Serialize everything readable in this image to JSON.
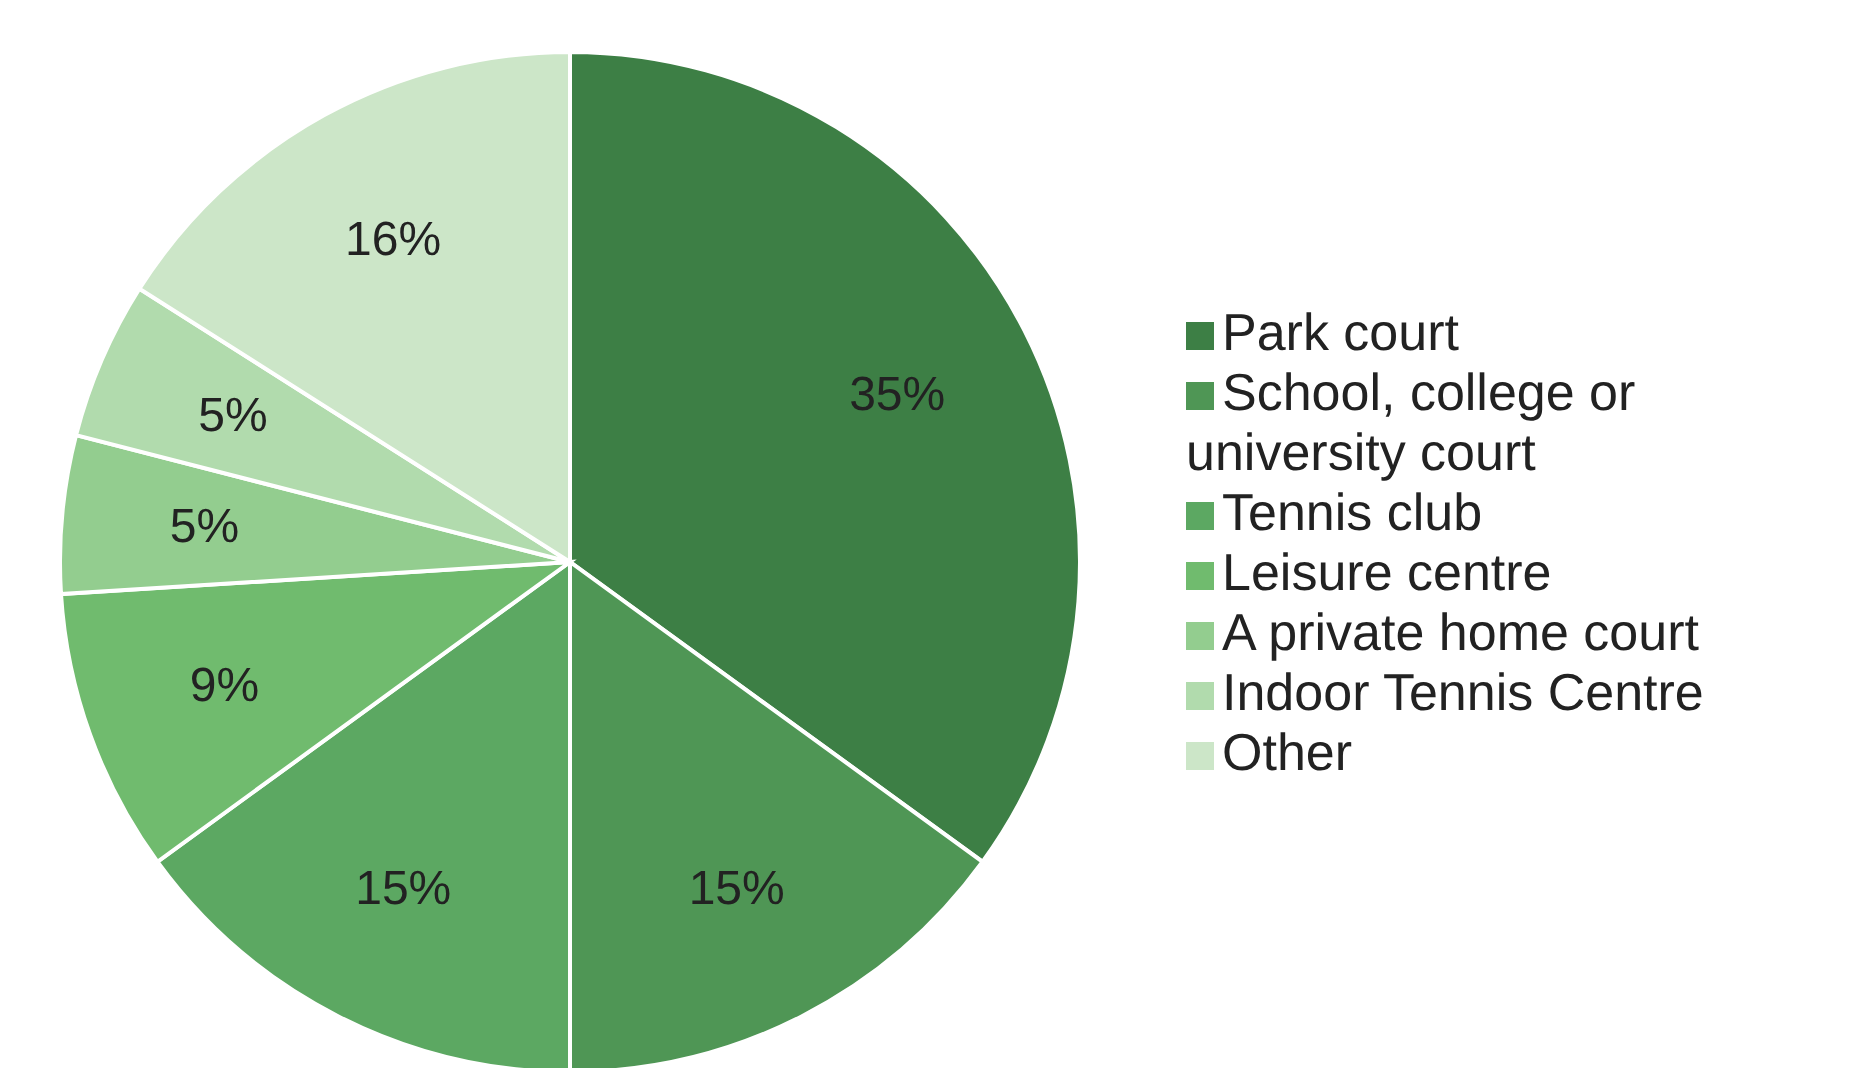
{
  "chart_data": {
    "type": "pie",
    "categories": [
      "Park court",
      "School, college or university court",
      "Tennis club",
      "Leisure centre",
      "A private home court",
      "Indoor Tennis Centre",
      "Other"
    ],
    "values": [
      35,
      15,
      15,
      9,
      5,
      5,
      16
    ],
    "value_labels": [
      "35%",
      "15%",
      "15%",
      "9%",
      "5%",
      "5%",
      "16%"
    ],
    "colors": [
      "#3d7f45",
      "#4f9655",
      "#5ca862",
      "#70bb6e",
      "#93cd8f",
      "#b1dbad",
      "#cce6c8"
    ],
    "legend": "right"
  }
}
